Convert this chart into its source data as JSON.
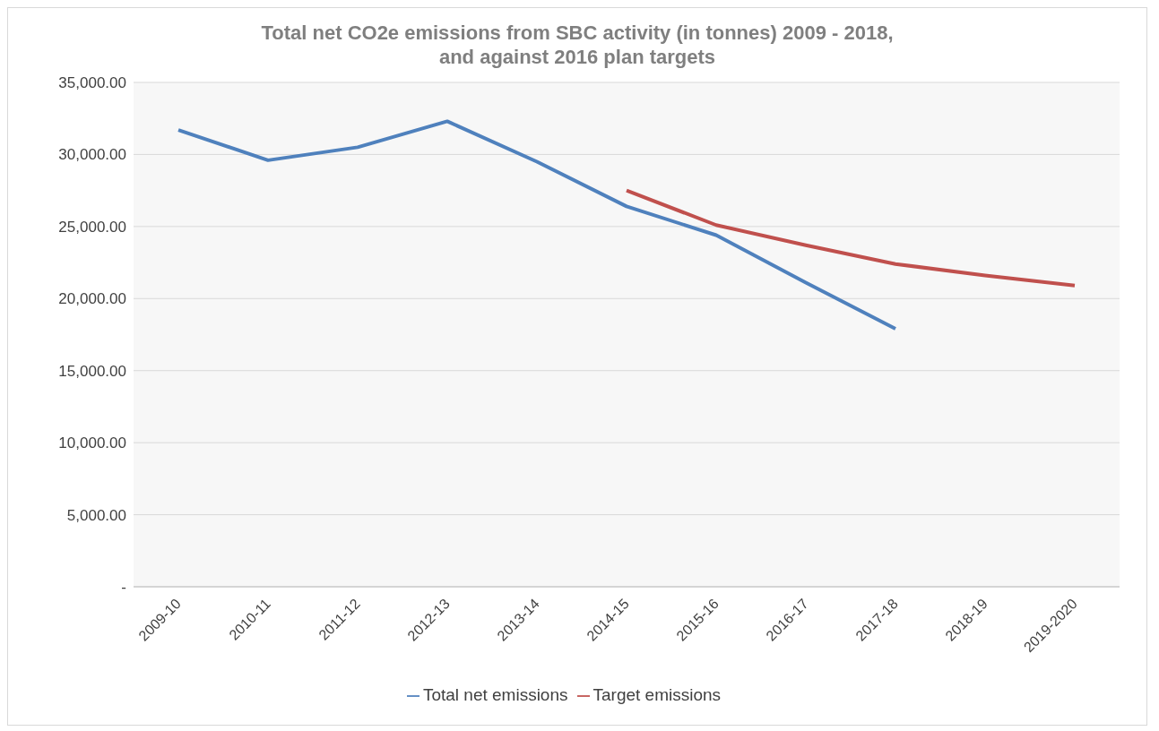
{
  "chart_data": {
    "type": "line",
    "title": "Total net CO2e emissions from SBC activity (in tonnes) 2009 - 2018,\nand against 2016 plan targets",
    "categories": [
      "2009-10",
      "2010-11",
      "2011-12",
      "2012-13",
      "2013-14",
      "2014-15",
      "2015-16",
      "2016-17",
      "2017-18",
      "2018-19",
      "2019-2020"
    ],
    "series": [
      {
        "name": "Total net emissions",
        "color": "#4f81bd",
        "values": [
          31700,
          29600,
          30500,
          32300,
          29500,
          26400,
          24400,
          21100,
          17900,
          null,
          null
        ]
      },
      {
        "name": "Target emissions",
        "color": "#c0504d",
        "values": [
          null,
          null,
          null,
          null,
          null,
          27500,
          25100,
          23700,
          22400,
          21600,
          20900
        ]
      }
    ],
    "ylim": [
      0,
      35000
    ],
    "yticks": [
      {
        "value": 0,
        "label": "-"
      },
      {
        "value": 5000,
        "label": "5,000.00"
      },
      {
        "value": 10000,
        "label": "10,000.00"
      },
      {
        "value": 15000,
        "label": "15,000.00"
      },
      {
        "value": 20000,
        "label": "20,000.00"
      },
      {
        "value": 25000,
        "label": "25,000.00"
      },
      {
        "value": 30000,
        "label": "30,000.00"
      },
      {
        "value": 35000,
        "label": "35,000.00"
      }
    ],
    "grid": "y",
    "legend": "bottom",
    "marker": "none",
    "line_style": "solid"
  }
}
